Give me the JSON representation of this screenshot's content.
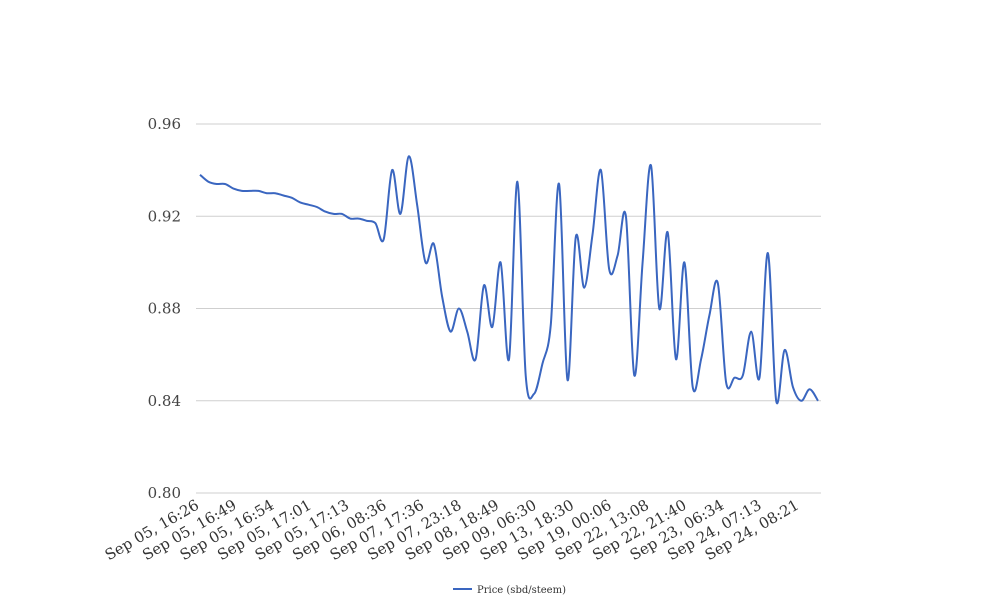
{
  "chart_data": {
    "type": "line",
    "title": "",
    "xlabel": "",
    "ylabel": "",
    "ylim": [
      0.8,
      0.96
    ],
    "yticks": [
      "0.80",
      "0.84",
      "0.88",
      "0.92",
      "0.96"
    ],
    "grid": true,
    "legend_position": "bottom",
    "x_tick_labels": [
      "Sep 05, 16:26",
      "Sep 05, 16:49",
      "Sep 05, 16:54",
      "Sep 05, 17:01",
      "Sep 05, 17:13",
      "Sep 06, 08:36",
      "Sep 07, 17:36",
      "Sep 07, 23:18",
      "Sep 08, 18:49",
      "Sep 09, 06:30",
      "Sep 13, 18:30",
      "Sep 19, 00:06",
      "Sep 22, 13:08",
      "Sep 22, 21:40",
      "Sep 23, 06:34",
      "Sep 24, 07:13",
      "Sep 24, 08:21"
    ],
    "series": [
      {
        "name": "Price (sbd/steem)",
        "color": "#3a66c0",
        "values": [
          0.938,
          0.935,
          0.934,
          0.934,
          0.932,
          0.931,
          0.931,
          0.931,
          0.93,
          0.93,
          0.929,
          0.928,
          0.926,
          0.925,
          0.924,
          0.922,
          0.921,
          0.921,
          0.919,
          0.919,
          0.918,
          0.917,
          0.91,
          0.94,
          0.921,
          0.946,
          0.925,
          0.9,
          0.908,
          0.885,
          0.87,
          0.88,
          0.87,
          0.858,
          0.89,
          0.872,
          0.9,
          0.858,
          0.935,
          0.851,
          0.843,
          0.856,
          0.873,
          0.934,
          0.849,
          0.911,
          0.889,
          0.912,
          0.94,
          0.897,
          0.903,
          0.92,
          0.851,
          0.9,
          0.942,
          0.88,
          0.913,
          0.858,
          0.9,
          0.846,
          0.858,
          0.877,
          0.891,
          0.848,
          0.85,
          0.851,
          0.87,
          0.85,
          0.904,
          0.84,
          0.862,
          0.846,
          0.84,
          0.845,
          0.84
        ]
      }
    ]
  }
}
